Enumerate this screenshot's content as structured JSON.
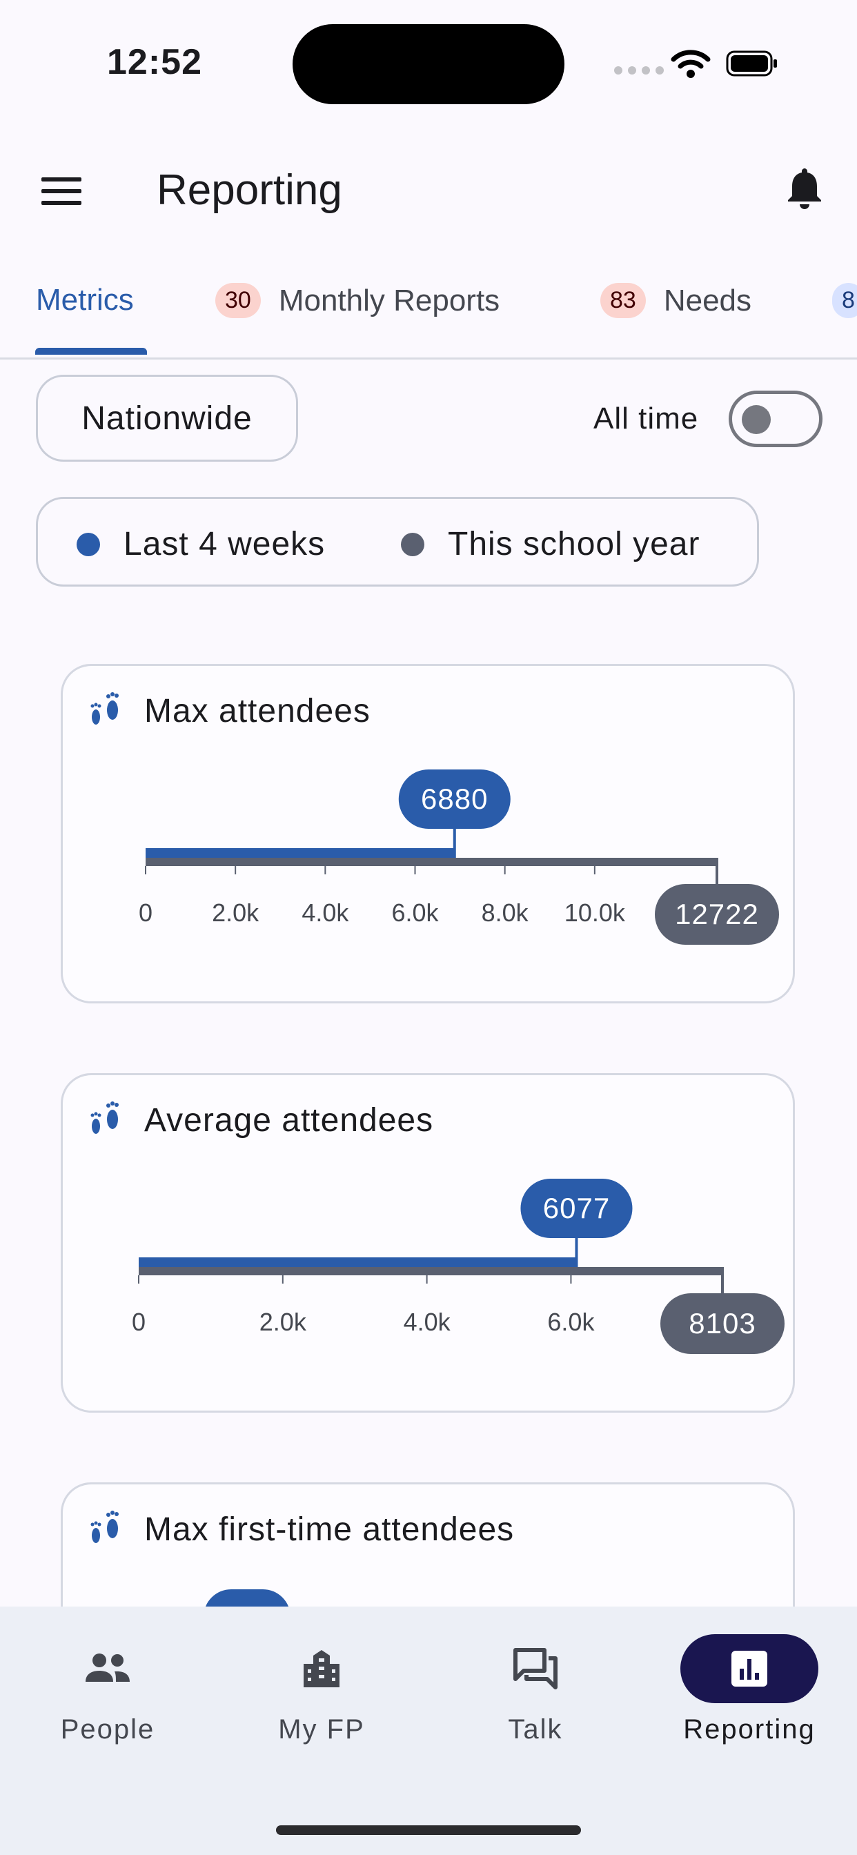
{
  "status_bar": {
    "time": "12:52"
  },
  "header": {
    "title": "Reporting"
  },
  "tabs": [
    {
      "label": "Metrics",
      "badge": ""
    },
    {
      "label": "Monthly Reports",
      "badge": "30"
    },
    {
      "label": "Needs",
      "badge": "83"
    },
    {
      "label": "",
      "badge": "8"
    }
  ],
  "filters": {
    "scope": "Nationwide",
    "all_time_label": "All time",
    "all_time_enabled": false
  },
  "legend": [
    {
      "label": "Last 4 weeks",
      "color": "#2a5caa"
    },
    {
      "label": "This school year",
      "color": "#5a6070"
    }
  ],
  "colors": {
    "accent": "#2a5caa",
    "secondary": "#5a6070",
    "badge_red": "#fbd3ce"
  },
  "chart_data": [
    {
      "type": "bar",
      "title": "Max attendees",
      "icon": "footprints-icon",
      "axis_max": 12722,
      "tick_values": [
        0,
        2000,
        4000,
        6000,
        8000,
        10000
      ],
      "tick_labels": [
        "0",
        "2.0k",
        "4.0k",
        "6.0k",
        "8.0k",
        "10.0k"
      ],
      "series": [
        {
          "name": "Last 4 weeks",
          "value": 6880,
          "label": "6880"
        },
        {
          "name": "This school year",
          "value": 12722,
          "label": "12722"
        }
      ]
    },
    {
      "type": "bar",
      "title": "Average attendees",
      "icon": "footprints-icon",
      "axis_max": 8103,
      "tick_values": [
        0,
        2000,
        4000,
        6000
      ],
      "tick_labels": [
        "0",
        "2.0k",
        "4.0k",
        "6.0k"
      ],
      "series": [
        {
          "name": "Last 4 weeks",
          "value": 6077,
          "label": "6077"
        },
        {
          "name": "This school year",
          "value": 8103,
          "label": "8103"
        }
      ]
    },
    {
      "type": "bar",
      "title": "Max first-time attendees",
      "icon": "footprints-icon",
      "series": []
    }
  ],
  "bottom_nav": [
    {
      "label": "People",
      "icon": "people-icon",
      "active": false
    },
    {
      "label": "My FP",
      "icon": "buildings-icon",
      "active": false
    },
    {
      "label": "Talk",
      "icon": "chat-icon",
      "active": false
    },
    {
      "label": "Reporting",
      "icon": "bar-chart-icon",
      "active": true
    }
  ]
}
